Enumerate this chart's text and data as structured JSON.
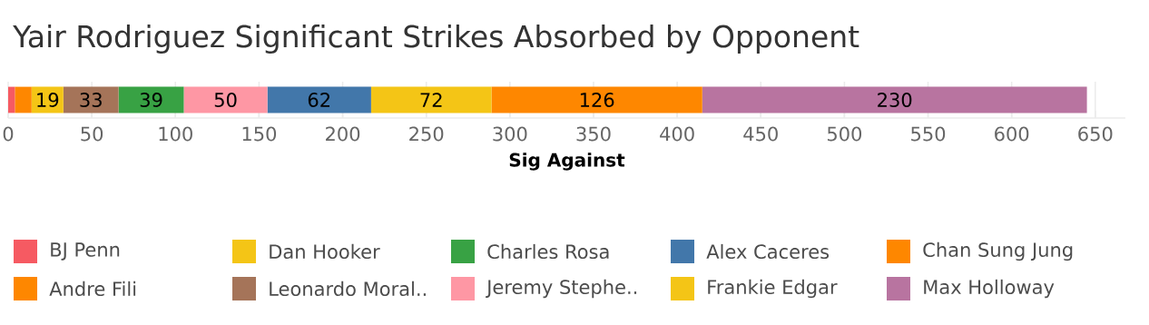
{
  "chart_data": {
    "type": "bar",
    "orientation": "horizontal",
    "stacked": true,
    "title": "Yair Rodriguez Significant Strikes Absorbed by Opponent",
    "xlabel": "Sig Against",
    "categories": [
      null
    ],
    "xlim": [
      0,
      668
    ],
    "xticks": [
      0,
      50,
      100,
      150,
      200,
      250,
      300,
      350,
      400,
      450,
      500,
      550,
      600,
      650
    ],
    "grid": "x",
    "legend": "bottom",
    "series": [
      {
        "name": "BJ Penn",
        "color": "#f65a62",
        "values": [
          4
        ],
        "value_labels": [
          null
        ]
      },
      {
        "name": "Andre Fili",
        "color": "#fe8700",
        "values": [
          10
        ],
        "value_labels": [
          null
        ]
      },
      {
        "name": "Dan Hooker",
        "color": "#f4c516",
        "values": [
          19
        ],
        "value_labels": [
          "19"
        ]
      },
      {
        "name": "Leonardo Moral..",
        "color": "#a57459",
        "values": [
          33
        ],
        "value_labels": [
          "33"
        ]
      },
      {
        "name": "Charles Rosa",
        "color": "#38a244",
        "values": [
          39
        ],
        "value_labels": [
          "39"
        ]
      },
      {
        "name": "Jeremy Stephe..",
        "color": "#fe97a4",
        "values": [
          50
        ],
        "value_labels": [
          "50"
        ]
      },
      {
        "name": "Alex Caceres",
        "color": "#4277aa",
        "values": [
          62
        ],
        "value_labels": [
          "62"
        ]
      },
      {
        "name": "Frankie Edgar",
        "color": "#f4c516",
        "values": [
          72
        ],
        "value_labels": [
          "72"
        ]
      },
      {
        "name": "Chan Sung Jung",
        "color": "#fe8700",
        "values": [
          126
        ],
        "value_labels": [
          "126"
        ]
      },
      {
        "name": "Max Holloway",
        "color": "#b874a0",
        "values": [
          230
        ],
        "value_labels": [
          "230"
        ]
      }
    ]
  }
}
